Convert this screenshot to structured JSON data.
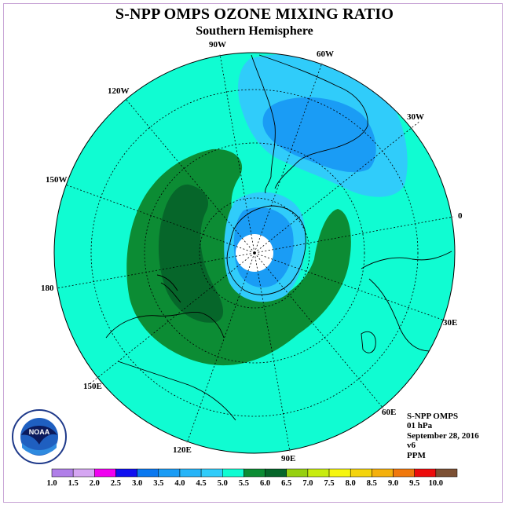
{
  "title": "S-NPP OMPS OZONE MIXING RATIO",
  "subtitle": "Southern Hemisphere",
  "longitude_labels": {
    "lon_90w": "90W",
    "lon_60w": "60W",
    "lon_30w": "30W",
    "lon_0": "0",
    "lon_30e": "30E",
    "lon_60e": "60E",
    "lon_90e": "90E",
    "lon_120e": "120E",
    "lon_150e": "150E",
    "lon_180": "180",
    "lon_150w": "150W",
    "lon_120w": "120W"
  },
  "info": {
    "instrument": "S-NPP OMPS",
    "level": "01 hPa",
    "date": "September 28, 2016",
    "version": "v6",
    "units": "PPM"
  },
  "colorbar": {
    "labels": [
      "1.0",
      "1.5",
      "2.0",
      "2.5",
      "3.0",
      "3.5",
      "4.0",
      "4.5",
      "5.0",
      "5.5",
      "6.0",
      "6.5",
      "7.0",
      "7.5",
      "8.0",
      "8.5",
      "9.0",
      "9.5",
      "10.0"
    ],
    "colors": [
      "#b07fe8",
      "#d5a6f2",
      "#f000f0",
      "#1010f0",
      "#0a78f0",
      "#1a9cf5",
      "#26b4f8",
      "#30ccfa",
      "#10fcd2",
      "#0c8c34",
      "#06662a",
      "#96d010",
      "#c8ec10",
      "#f6f610",
      "#f4d40c",
      "#f4b00c",
      "#f0780c",
      "#ec0c0c",
      "#7c5034"
    ]
  },
  "logo_text": "NOAA",
  "colors": {
    "background_field": "#10fcd2",
    "dark_green": "#06662a",
    "green": "#0c8c34",
    "blue": "#1a9cf5",
    "light_blue": "#30ccfa",
    "frame": "#c9a6d6"
  }
}
